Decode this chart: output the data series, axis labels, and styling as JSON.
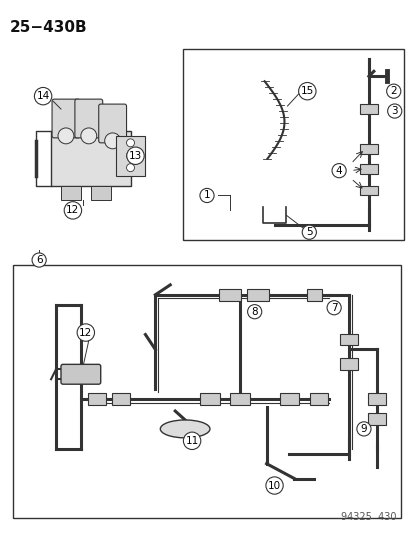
{
  "title": "25−430B",
  "background_color": "#ffffff",
  "line_color": "#333333",
  "part_number": "94325  430",
  "figsize": [
    4.14,
    5.33
  ],
  "dpi": 100
}
